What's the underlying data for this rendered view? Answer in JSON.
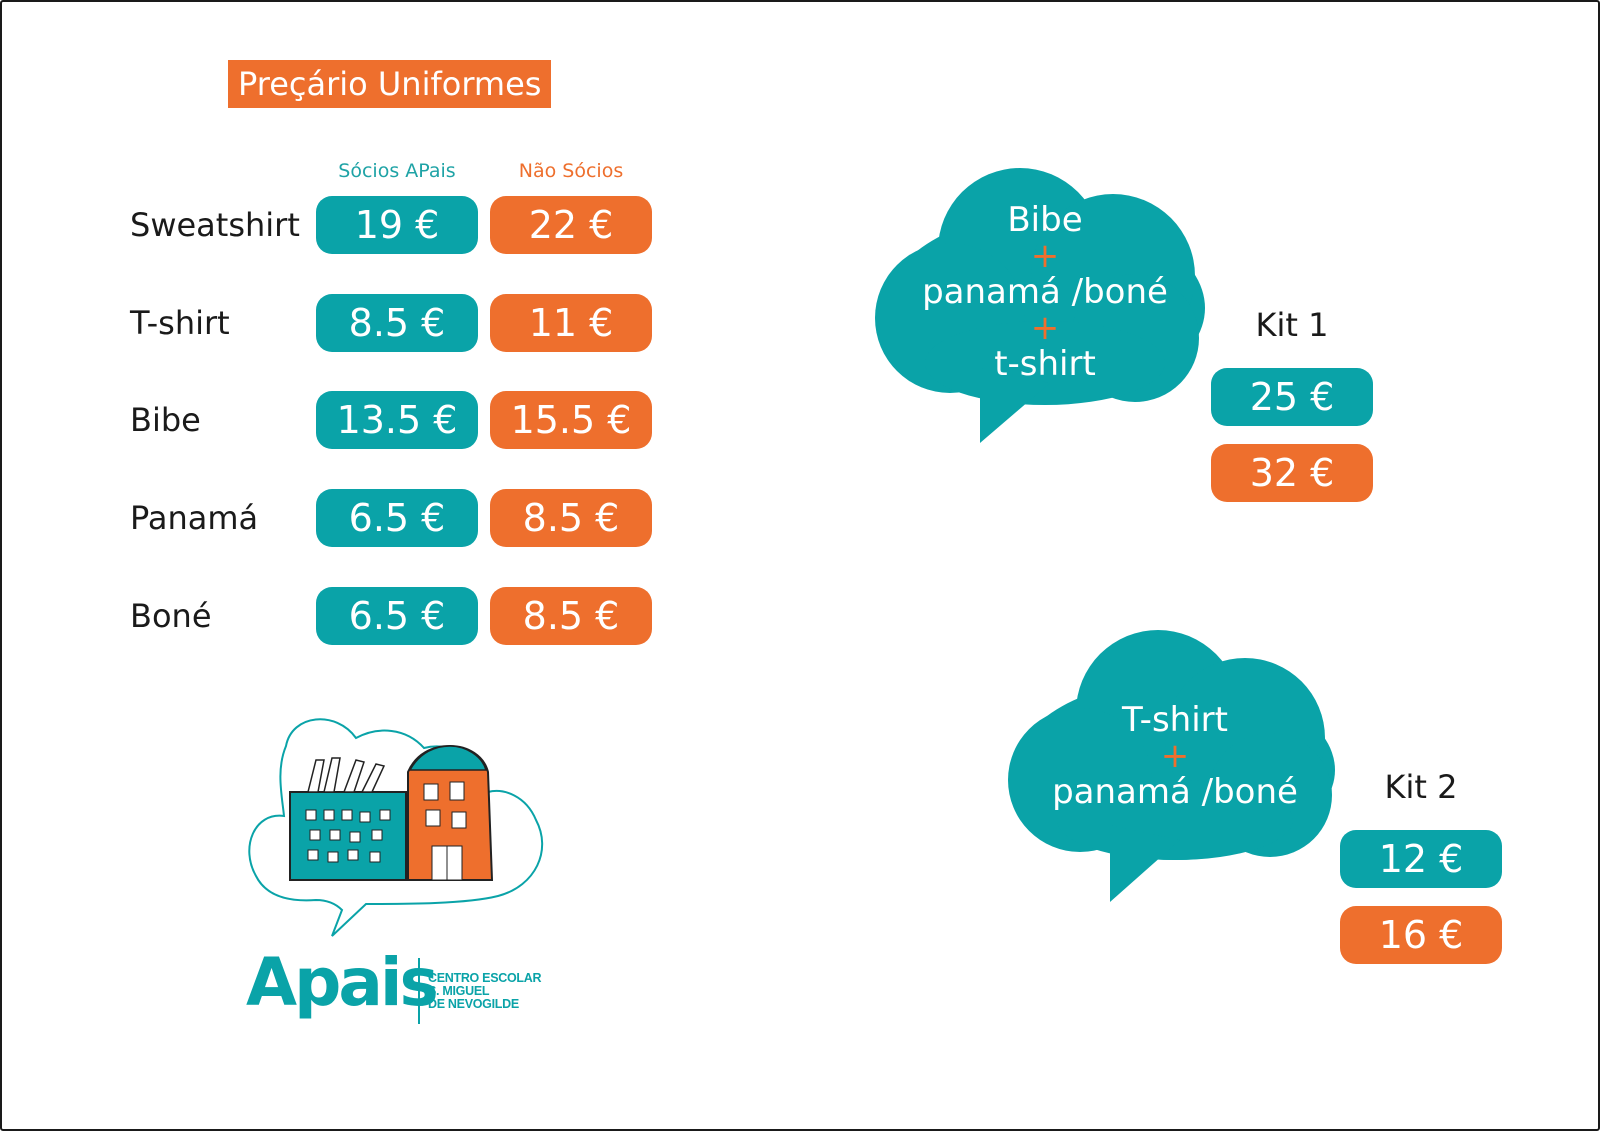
{
  "title": "Preçário Uniformes",
  "columns": {
    "members": "Sócios APais",
    "non_members": "Não Sócios"
  },
  "items": [
    {
      "name": "Sweatshirt",
      "member_price": "19 €",
      "non_member_price": "22 €"
    },
    {
      "name": "T-shirt",
      "member_price": "8.5 €",
      "non_member_price": "11 €"
    },
    {
      "name": "Bibe",
      "member_price": "13.5 €",
      "non_member_price": "15.5 €"
    },
    {
      "name": "Panamá",
      "member_price": "6.5 €",
      "non_member_price": "8.5 €"
    },
    {
      "name": "Boné",
      "member_price": "6.5 €",
      "non_member_price": "8.5 €"
    }
  ],
  "kits": [
    {
      "label": "Kit 1",
      "contents": [
        "Bibe",
        "panamá /boné",
        "t-shirt"
      ],
      "plus": "+",
      "member_price": "25 €",
      "non_member_price": "32 €"
    },
    {
      "label": "Kit 2",
      "contents": [
        "T-shirt",
        "panamá /boné"
      ],
      "plus": "+",
      "member_price": "12 €",
      "non_member_price": "16 €"
    }
  ],
  "logo": {
    "wordmark": "Apais",
    "subtitle_lines": [
      "CENTRO ESCOLAR",
      "S. MIGUEL",
      "DE NEVOGILDE"
    ]
  },
  "colors": {
    "teal": "#0aa3a8",
    "orange": "#ee6f2d",
    "text": "#1a1a1a"
  }
}
